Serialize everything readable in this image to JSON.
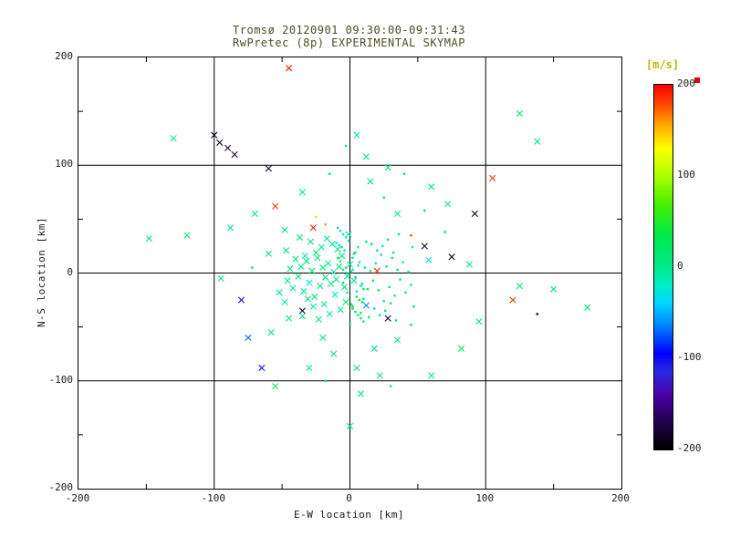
{
  "header": {
    "title": "Tromsø 20120901 09:30:00-09:31:43",
    "subtitle": "RwPretec (8p) EXPERIMENTAL SKYMAP"
  },
  "axes": {
    "xlabel": "E-W location [km]",
    "ylabel": "N-S location [km]",
    "xticks": [
      -200,
      -100,
      0,
      100,
      200
    ],
    "yticks": [
      -200,
      -100,
      0,
      100,
      200
    ],
    "grid_values": [
      -100,
      0,
      100
    ],
    "minor_ticks": [
      -150,
      -50,
      50,
      150
    ]
  },
  "colorbar": {
    "label": "[m/s]",
    "ticks": [
      200,
      100,
      0,
      -100,
      -200
    ],
    "min": -200,
    "max": 200
  },
  "colors": {
    "title_text": "#4d4d26",
    "axis_text": "#1a1a1a",
    "colorbar_label": "#b9b900",
    "grid": "#000000",
    "marker_red": "#e60000",
    "background": "#ffffff"
  },
  "chart_data": {
    "type": "scatter",
    "title": "Tromsø 20120901 09:30:00-09:31:43 / RwPretec (8p) EXPERIMENTAL SKYMAP",
    "xlabel": "E-W location [km]",
    "ylabel": "N-S location [km]",
    "xlim": [
      -200,
      200
    ],
    "ylim": [
      -200,
      200
    ],
    "grid": true,
    "legend": "colorbar right, velocity [m/s], range -200 to 200",
    "colormap_stops": [
      {
        "t": -200,
        "c": "#000000"
      },
      {
        "t": -170,
        "c": "#23004d"
      },
      {
        "t": -140,
        "c": "#4b00a8"
      },
      {
        "t": -115,
        "c": "#2a2ae0"
      },
      {
        "t": -95,
        "c": "#0000ff"
      },
      {
        "t": -65,
        "c": "#0080ff"
      },
      {
        "t": -40,
        "c": "#00d4ff"
      },
      {
        "t": -20,
        "c": "#00f0c8"
      },
      {
        "t": 0,
        "c": "#00e88a"
      },
      {
        "t": 35,
        "c": "#00e84a"
      },
      {
        "t": 70,
        "c": "#4cf000"
      },
      {
        "t": 100,
        "c": "#aaff00"
      },
      {
        "t": 130,
        "c": "#ffff00"
      },
      {
        "t": 160,
        "c": "#ff9900"
      },
      {
        "t": 180,
        "c": "#ff4000"
      },
      {
        "t": 200,
        "c": "#ff0000"
      }
    ],
    "points_format": [
      "x_km",
      "y_km",
      "velocity_mps",
      "marker(1=x,0=dot)"
    ],
    "points": [
      [
        -45,
        190,
        195,
        1
      ],
      [
        -130,
        125,
        10,
        1
      ],
      [
        -100,
        128,
        -190,
        1
      ],
      [
        -96,
        121,
        -185,
        1
      ],
      [
        -90,
        116,
        -180,
        1
      ],
      [
        -85,
        110,
        -178,
        1
      ],
      [
        -60,
        97,
        -182,
        1
      ],
      [
        5,
        128,
        5,
        1
      ],
      [
        -3,
        118,
        8,
        0
      ],
      [
        12,
        108,
        0,
        1
      ],
      [
        28,
        98,
        12,
        1
      ],
      [
        40,
        92,
        5,
        0
      ],
      [
        125,
        148,
        12,
        1
      ],
      [
        138,
        122,
        8,
        1
      ],
      [
        105,
        88,
        185,
        1
      ],
      [
        92,
        55,
        -185,
        1
      ],
      [
        60,
        80,
        10,
        1
      ],
      [
        72,
        64,
        6,
        1
      ],
      [
        55,
        58,
        3,
        0
      ],
      [
        -55,
        62,
        182,
        1
      ],
      [
        -70,
        55,
        8,
        1
      ],
      [
        -88,
        42,
        5,
        1
      ],
      [
        -120,
        35,
        10,
        1
      ],
      [
        -148,
        32,
        6,
        1
      ],
      [
        55,
        25,
        -180,
        1
      ],
      [
        75,
        15,
        -185,
        1
      ],
      [
        45,
        35,
        175,
        0
      ],
      [
        -18,
        45,
        160,
        0
      ],
      [
        -25,
        52,
        140,
        0
      ],
      [
        -27,
        42,
        190,
        1
      ],
      [
        20,
        2,
        185,
        1
      ],
      [
        120,
        -25,
        185,
        1
      ],
      [
        150,
        -15,
        10,
        1
      ],
      [
        175,
        -32,
        8,
        1
      ],
      [
        95,
        -45,
        5,
        1
      ],
      [
        82,
        -70,
        8,
        1
      ],
      [
        60,
        -95,
        6,
        1
      ],
      [
        0,
        -142,
        8,
        1
      ],
      [
        -65,
        -88,
        -90,
        1
      ],
      [
        -75,
        -60,
        -70,
        1
      ],
      [
        -80,
        -25,
        -100,
        1
      ],
      [
        -95,
        -5,
        5,
        1
      ],
      [
        -55,
        -105,
        10,
        1
      ],
      [
        30,
        -105,
        8,
        0
      ],
      [
        138,
        -38,
        -170,
        0
      ],
      [
        125,
        -12,
        12,
        1
      ],
      [
        58,
        12,
        -20,
        1
      ],
      [
        88,
        8,
        0,
        1
      ],
      [
        70,
        38,
        5,
        0
      ],
      [
        35,
        55,
        8,
        1
      ],
      [
        25,
        70,
        4,
        0
      ],
      [
        15,
        85,
        10,
        1
      ],
      [
        -15,
        92,
        6,
        0
      ],
      [
        -35,
        75,
        12,
        1
      ],
      [
        -48,
        40,
        8,
        1
      ],
      [
        -60,
        18,
        5,
        1
      ],
      [
        -72,
        5,
        10,
        0
      ],
      [
        -52,
        -18,
        3,
        1
      ],
      [
        -45,
        -42,
        6,
        1
      ],
      [
        -58,
        -55,
        9,
        1
      ],
      [
        -35,
        -35,
        -175,
        1
      ],
      [
        28,
        -42,
        -180,
        1
      ],
      [
        12,
        -30,
        -60,
        1
      ],
      [
        -20,
        -60,
        5,
        1
      ],
      [
        -12,
        -75,
        8,
        1
      ],
      [
        5,
        -88,
        6,
        1
      ],
      [
        18,
        -70,
        10,
        1
      ],
      [
        35,
        -62,
        4,
        1
      ],
      [
        45,
        -48,
        7,
        0
      ],
      [
        -30,
        -88,
        11,
        1
      ],
      [
        -18,
        -100,
        5,
        0
      ],
      [
        8,
        -112,
        9,
        1
      ],
      [
        22,
        -95,
        3,
        1
      ],
      [
        -2,
        -3,
        5,
        1
      ],
      [
        1,
        1,
        -3,
        0
      ],
      [
        3,
        -7,
        12,
        1
      ],
      [
        -5,
        3,
        8,
        0
      ],
      [
        0,
        8,
        -8,
        1
      ],
      [
        2,
        14,
        4,
        0
      ],
      [
        -4,
        -13,
        15,
        1
      ],
      [
        5,
        -17,
        -12,
        0
      ],
      [
        -8,
        6,
        20,
        1
      ],
      [
        7,
        10,
        -5,
        0
      ],
      [
        -10,
        -6,
        3,
        1
      ],
      [
        9,
        -10,
        10,
        0
      ],
      [
        -12,
        1,
        -15,
        1
      ],
      [
        11,
        5,
        6,
        0
      ],
      [
        -6,
        16,
        12,
        1
      ],
      [
        4,
        19,
        -4,
        0
      ],
      [
        -14,
        -10,
        8,
        1
      ],
      [
        13,
        -15,
        18,
        0
      ],
      [
        -16,
        9,
        -6,
        1
      ],
      [
        15,
        2,
        5,
        0
      ],
      [
        -9,
        22,
        10,
        1
      ],
      [
        6,
        24,
        -10,
        0
      ],
      [
        -18,
        -4,
        14,
        1
      ],
      [
        17,
        -7,
        2,
        0
      ],
      [
        -11,
        -20,
        -18,
        1
      ],
      [
        10,
        -24,
        9,
        0
      ],
      [
        -3,
        -27,
        6,
        1
      ],
      [
        2,
        -31,
        13,
        0
      ],
      [
        -7,
        -34,
        -7,
        1
      ],
      [
        8,
        -37,
        4,
        0
      ],
      [
        -20,
        5,
        11,
        1
      ],
      [
        19,
        9,
        -14,
        0
      ],
      [
        -22,
        -12,
        7,
        1
      ],
      [
        21,
        -16,
        16,
        0
      ],
      [
        -13,
        27,
        -2,
        1
      ],
      [
        12,
        29,
        8,
        0
      ],
      [
        -24,
        14,
        5,
        1
      ],
      [
        23,
        17,
        -9,
        0
      ],
      [
        -26,
        -22,
        12,
        1
      ],
      [
        25,
        -26,
        3,
        0
      ],
      [
        -15,
        -38,
        -11,
        1
      ],
      [
        14,
        -41,
        10,
        0
      ],
      [
        -28,
        2,
        18,
        1
      ],
      [
        27,
        6,
        -5,
        0
      ],
      [
        -17,
        32,
        7,
        1
      ],
      [
        16,
        27,
        14,
        0
      ],
      [
        -30,
        -9,
        -16,
        1
      ],
      [
        29,
        -13,
        6,
        0
      ],
      [
        -19,
        -29,
        9,
        1
      ],
      [
        18,
        -33,
        -3,
        0
      ],
      [
        -32,
        11,
        13,
        1
      ],
      [
        31,
        14,
        5,
        0
      ],
      [
        -21,
        24,
        -8,
        1
      ],
      [
        20,
        21,
        17,
        0
      ],
      [
        -34,
        -17,
        4,
        1
      ],
      [
        33,
        -21,
        -13,
        0
      ],
      [
        -23,
        -43,
        8,
        1
      ],
      [
        22,
        -39,
        11,
        0
      ],
      [
        -36,
        6,
        -4,
        1
      ],
      [
        35,
        3,
        15,
        0
      ],
      [
        -25,
        19,
        9,
        1
      ],
      [
        24,
        25,
        -17,
        0
      ],
      [
        -38,
        -3,
        6,
        1
      ],
      [
        37,
        -6,
        12,
        0
      ],
      [
        -27,
        -31,
        -9,
        1
      ],
      [
        26,
        -35,
        5,
        0
      ],
      [
        -40,
        13,
        10,
        1
      ],
      [
        39,
        10,
        -6,
        0
      ],
      [
        -29,
        29,
        14,
        1
      ],
      [
        28,
        31,
        2,
        0
      ],
      [
        -42,
        -14,
        -12,
        1
      ],
      [
        41,
        -18,
        8,
        0
      ],
      [
        -31,
        -24,
        16,
        1
      ],
      [
        30,
        -28,
        -2,
        0
      ],
      [
        -44,
        4,
        7,
        1
      ],
      [
        43,
        1,
        13,
        0
      ],
      [
        -33,
        16,
        -15,
        1
      ],
      [
        32,
        19,
        4,
        0
      ],
      [
        -46,
        -7,
        11,
        1
      ],
      [
        45,
        -11,
        -8,
        0
      ],
      [
        -35,
        -40,
        6,
        1
      ],
      [
        34,
        -44,
        15,
        0
      ],
      [
        -1,
        36,
        -5,
        1
      ],
      [
        0,
        -47,
        9,
        0
      ],
      [
        -47,
        21,
        3,
        1
      ],
      [
        46,
        24,
        -11,
        0
      ],
      [
        -37,
        33,
        12,
        1
      ],
      [
        36,
        36,
        5,
        0
      ],
      [
        -48,
        -27,
        -14,
        1
      ],
      [
        47,
        -31,
        7,
        0
      ],
      [
        -1,
        -1,
        2,
        0
      ],
      [
        2,
        3,
        -2,
        0
      ],
      [
        -3,
        5,
        6,
        0
      ],
      [
        4,
        -4,
        -6,
        0
      ],
      [
        -5,
        -9,
        10,
        0
      ],
      [
        6,
        7,
        -10,
        0
      ],
      [
        -7,
        11,
        14,
        0
      ],
      [
        8,
        -12,
        -14,
        0
      ],
      [
        -9,
        14,
        18,
        0
      ],
      [
        10,
        -15,
        22,
        0
      ],
      [
        -2,
        -18,
        -20,
        0
      ],
      [
        3,
        18,
        24,
        0
      ],
      [
        -4,
        21,
        -24,
        0
      ],
      [
        5,
        -22,
        26,
        0
      ],
      [
        -6,
        24,
        -26,
        0
      ],
      [
        7,
        -25,
        28,
        0
      ],
      [
        -8,
        26,
        -28,
        0
      ],
      [
        9,
        -27,
        30,
        0
      ],
      [
        -10,
        28,
        -30,
        0
      ],
      [
        1,
        -29,
        32,
        0
      ],
      [
        -1,
        30,
        -32,
        0
      ],
      [
        2,
        -33,
        25,
        0
      ],
      [
        -3,
        33,
        -22,
        0
      ],
      [
        4,
        -36,
        19,
        0
      ],
      [
        -5,
        36,
        -16,
        0
      ],
      [
        6,
        -39,
        13,
        0
      ],
      [
        -7,
        39,
        -10,
        0
      ],
      [
        8,
        -42,
        7,
        0
      ],
      [
        -9,
        42,
        -4,
        0
      ],
      [
        10,
        -45,
        1,
        0
      ]
    ]
  }
}
